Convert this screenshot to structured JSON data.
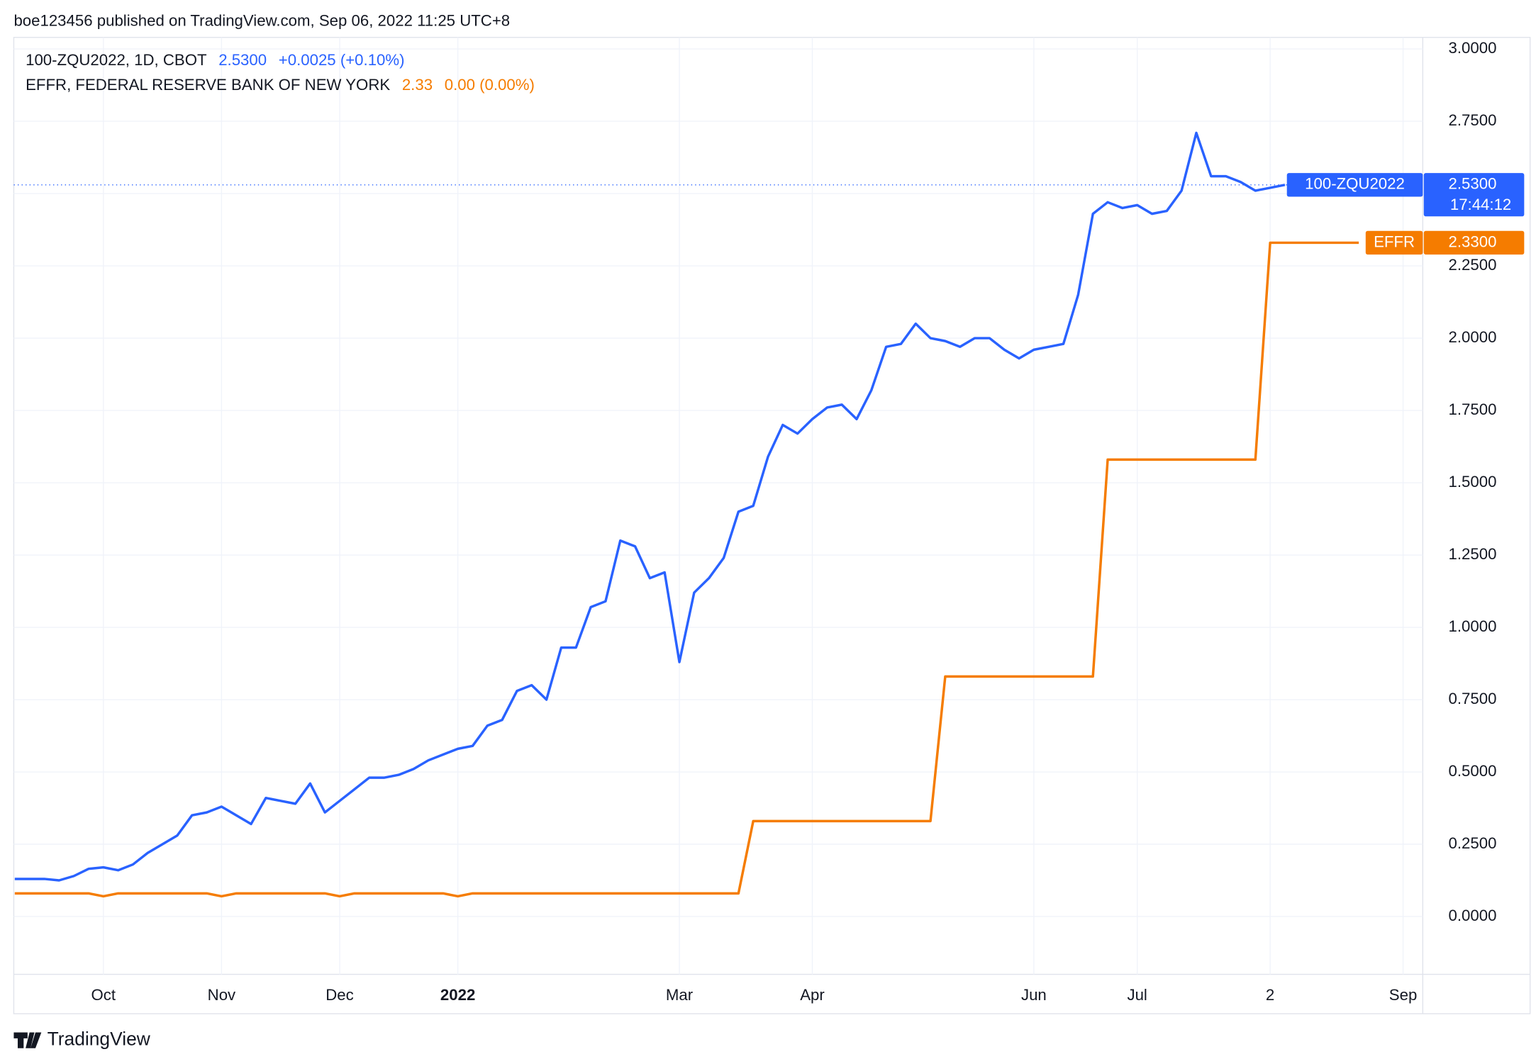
{
  "header": {
    "text": "boe123456 published on TradingView.com, Sep 06, 2022 11:25 UTC+8"
  },
  "footer": {
    "brand": "TradingView"
  },
  "chart_data": {
    "type": "line",
    "categories": [
      null,
      null,
      null,
      null,
      null,
      null,
      "Oct",
      null,
      null,
      null,
      null,
      null,
      null,
      null,
      "Nov",
      null,
      null,
      null,
      null,
      null,
      null,
      null,
      "Dec",
      null,
      null,
      null,
      null,
      null,
      null,
      null,
      "2022",
      null,
      null,
      null,
      null,
      null,
      null,
      null,
      null,
      null,
      null,
      null,
      null,
      null,
      null,
      "Mar",
      null,
      null,
      null,
      null,
      null,
      null,
      null,
      null,
      "Apr",
      null,
      null,
      null,
      null,
      null,
      null,
      null,
      null,
      null,
      null,
      null,
      null,
      null,
      null,
      "Jun",
      null,
      null,
      null,
      null,
      null,
      null,
      "Jul",
      null,
      null,
      null,
      null,
      null,
      null,
      null,
      null,
      "2",
      null,
      null,
      null,
      null,
      null,
      null,
      null,
      null,
      "Sep",
      null
    ],
    "series": [
      {
        "name": "100-ZQU2022",
        "legend": "100-ZQU2022, 1D, CBOT",
        "last_label": "2.5300",
        "change_label": "+0.0025 (+0.10%)",
        "countdown": "17:44:12",
        "tag": "100-ZQU2022",
        "color": "#2962ff",
        "price_line": true,
        "values": [
          0.13,
          0.13,
          0.13,
          0.125,
          0.14,
          0.165,
          0.17,
          0.16,
          0.18,
          0.22,
          0.25,
          0.28,
          0.35,
          0.36,
          0.38,
          0.35,
          0.32,
          0.41,
          0.4,
          0.39,
          0.46,
          0.36,
          0.4,
          0.44,
          0.48,
          0.48,
          0.49,
          0.51,
          0.54,
          0.56,
          0.58,
          0.59,
          0.66,
          0.68,
          0.78,
          0.8,
          0.75,
          0.93,
          0.93,
          1.07,
          1.09,
          1.3,
          1.28,
          1.17,
          1.19,
          0.88,
          1.12,
          1.17,
          1.24,
          1.4,
          1.42,
          1.59,
          1.7,
          1.67,
          1.72,
          1.76,
          1.77,
          1.72,
          1.82,
          1.97,
          1.98,
          2.05,
          2,
          1.99,
          1.97,
          2,
          2,
          1.96,
          1.93,
          1.96,
          1.97,
          1.98,
          2.15,
          2.43,
          2.47,
          2.45,
          2.46,
          2.43,
          2.44,
          2.51,
          2.71,
          2.56,
          2.56,
          2.54,
          2.51,
          2.52,
          2.53,
          null,
          null,
          null,
          null,
          null,
          null,
          null,
          null,
          null
        ]
      },
      {
        "name": "EFFR",
        "legend": "EFFR, FEDERAL RESERVE BANK OF NEW YORK",
        "last_label": "2.33",
        "change_label": "0.00 (0.00%)",
        "axis_label": "2.3300",
        "tag": "EFFR",
        "color": "#f57c00",
        "price_line": false,
        "values": [
          0.08,
          0.08,
          0.08,
          0.08,
          0.08,
          0.08,
          0.07,
          0.08,
          0.08,
          0.08,
          0.08,
          0.08,
          0.08,
          0.08,
          0.07,
          0.08,
          0.08,
          0.08,
          0.08,
          0.08,
          0.08,
          0.08,
          0.07,
          0.08,
          0.08,
          0.08,
          0.08,
          0.08,
          0.08,
          0.08,
          0.07,
          0.08,
          0.08,
          0.08,
          0.08,
          0.08,
          0.08,
          0.08,
          0.08,
          0.08,
          0.08,
          0.08,
          0.08,
          0.08,
          0.08,
          0.08,
          0.08,
          0.08,
          0.08,
          0.08,
          0.33,
          0.33,
          0.33,
          0.33,
          0.33,
          0.33,
          0.33,
          0.33,
          0.33,
          0.33,
          0.33,
          0.33,
          0.33,
          0.83,
          0.83,
          0.83,
          0.83,
          0.83,
          0.83,
          0.83,
          0.83,
          0.83,
          0.83,
          0.83,
          1.58,
          1.58,
          1.58,
          1.58,
          1.58,
          1.58,
          1.58,
          1.58,
          1.58,
          1.58,
          1.58,
          2.33,
          2.33,
          2.33,
          2.33,
          2.33,
          2.33,
          2.33,
          null,
          null,
          null,
          null
        ]
      }
    ],
    "ylim": [
      -0.2,
      3.04
    ],
    "yticks": [
      {
        "value": 0,
        "label": "0.0000"
      },
      {
        "value": 0.25,
        "label": "0.2500"
      },
      {
        "value": 0.5,
        "label": "0.5000"
      },
      {
        "value": 0.75,
        "label": "0.7500"
      },
      {
        "value": 1,
        "label": "1.0000"
      },
      {
        "value": 1.25,
        "label": "1.2500"
      },
      {
        "value": 1.5,
        "label": "1.5000"
      },
      {
        "value": 1.75,
        "label": "1.7500"
      },
      {
        "value": 2,
        "label": "2.0000"
      },
      {
        "value": 2.25,
        "label": "2.2500"
      },
      {
        "value": 2.5,
        "label": "2.5000"
      },
      {
        "value": 2.75,
        "label": "2.7500"
      },
      {
        "value": 3,
        "label": "3.0000"
      }
    ],
    "grid": true
  }
}
